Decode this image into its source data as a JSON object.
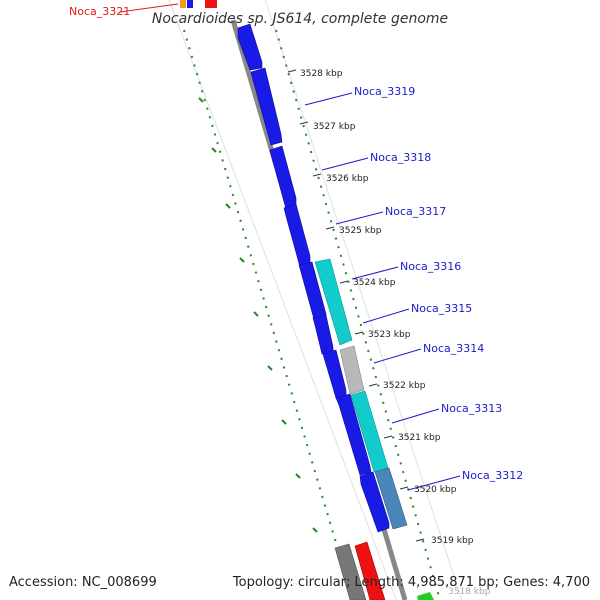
{
  "title": "Nocardioides sp. JS614, complete genome",
  "accession": "Accession: NC_008699",
  "summary": "Topology: circular; Length: 4,985,871 bp; Genes: 4,700",
  "colors": {
    "gene_dark_blue": "#1a1ae6",
    "gene_cyan": "#12cccc",
    "gene_steel_blue": "#4a86b8",
    "gene_grey": "#b8b8b8",
    "gene_dark_grey": "#777777",
    "gene_red": "#ee1111",
    "gene_orange": "#f39c12",
    "gene_green": "#22cc22",
    "label_red": "#e31a1a",
    "label_blue": "#1a1acc",
    "gc_skew_green": "#228b22",
    "backbone": "#888888"
  },
  "kbp_markers": [
    "3528 kbp",
    "3527 kbp",
    "3526 kbp",
    "3525 kbp",
    "3524 kbp",
    "3523 kbp",
    "3522 kbp",
    "3521 kbp",
    "3520 kbp",
    "3519 kbp",
    "3518 kbp"
  ],
  "gene_labels": [
    {
      "name": "Noca_3321",
      "color": "red"
    },
    {
      "name": "Noca_3319",
      "color": "blue"
    },
    {
      "name": "Noca_3318",
      "color": "blue"
    },
    {
      "name": "Noca_3317",
      "color": "blue"
    },
    {
      "name": "Noca_3316",
      "color": "blue"
    },
    {
      "name": "Noca_3315",
      "color": "blue"
    },
    {
      "name": "Noca_3314",
      "color": "blue"
    },
    {
      "name": "Noca_3313",
      "color": "blue"
    },
    {
      "name": "Noca_3312",
      "color": "blue"
    }
  ]
}
